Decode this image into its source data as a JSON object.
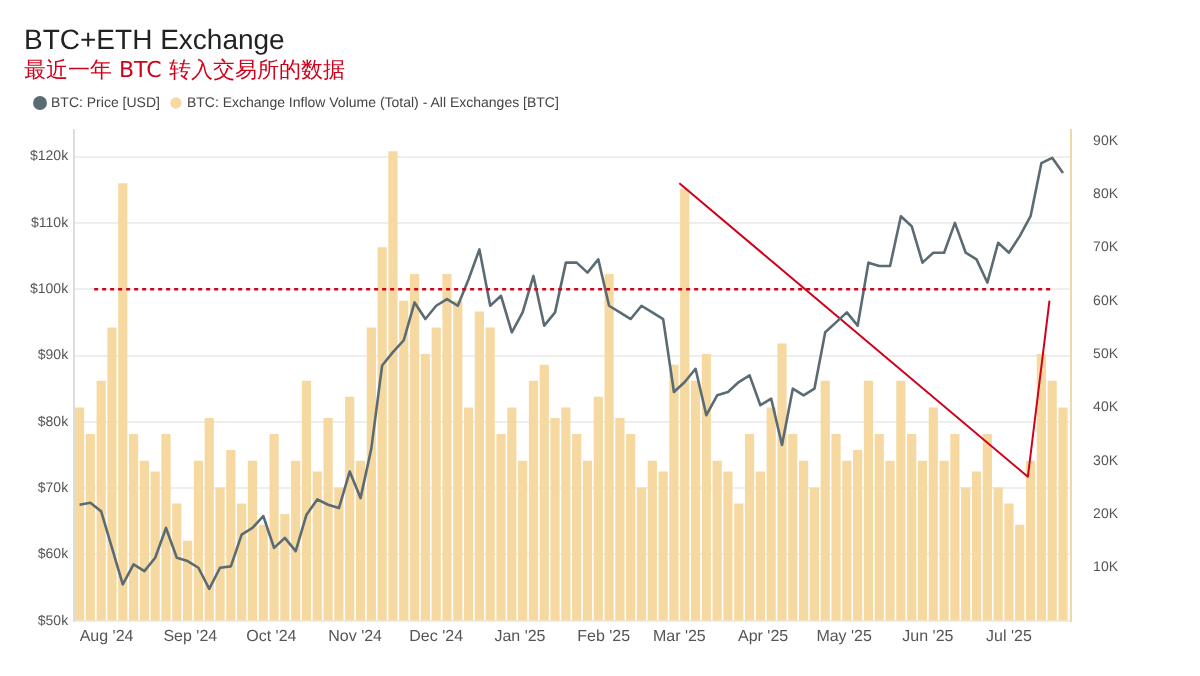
{
  "chart_data": {
    "type": "line",
    "title": "BTC+ETH Exchange",
    "subtitle": "最近一年 BTC 转入交易所的数据",
    "x": [
      "2024-07-22",
      "2024-07-26",
      "2024-07-30",
      "2024-08-03",
      "2024-08-07",
      "2024-08-11",
      "2024-08-15",
      "2024-08-19",
      "2024-08-23",
      "2024-08-27",
      "2024-08-31",
      "2024-09-04",
      "2024-09-08",
      "2024-09-12",
      "2024-09-16",
      "2024-09-20",
      "2024-09-24",
      "2024-09-28",
      "2024-10-02",
      "2024-10-06",
      "2024-10-10",
      "2024-10-14",
      "2024-10-18",
      "2024-10-22",
      "2024-10-26",
      "2024-10-30",
      "2024-11-03",
      "2024-11-07",
      "2024-11-11",
      "2024-11-15",
      "2024-11-19",
      "2024-11-23",
      "2024-11-27",
      "2024-12-01",
      "2024-12-05",
      "2024-12-09",
      "2024-12-13",
      "2024-12-17",
      "2024-12-21",
      "2024-12-25",
      "2024-12-29",
      "2025-01-02",
      "2025-01-06",
      "2025-01-10",
      "2025-01-14",
      "2025-01-18",
      "2025-01-22",
      "2025-01-26",
      "2025-01-30",
      "2025-02-03",
      "2025-02-07",
      "2025-02-11",
      "2025-02-15",
      "2025-02-19",
      "2025-02-23",
      "2025-02-27",
      "2025-03-03",
      "2025-03-07",
      "2025-03-11",
      "2025-03-15",
      "2025-03-19",
      "2025-03-23",
      "2025-03-27",
      "2025-03-31",
      "2025-04-04",
      "2025-04-08",
      "2025-04-12",
      "2025-04-16",
      "2025-04-20",
      "2025-04-24",
      "2025-04-28",
      "2025-05-02",
      "2025-05-06",
      "2025-05-10",
      "2025-05-14",
      "2025-05-18",
      "2025-05-22",
      "2025-05-26",
      "2025-05-30",
      "2025-06-03",
      "2025-06-07",
      "2025-06-11",
      "2025-06-15",
      "2025-06-19",
      "2025-06-23",
      "2025-06-27",
      "2025-07-01",
      "2025-07-05",
      "2025-07-09",
      "2025-07-13",
      "2025-07-17",
      "2025-07-21"
    ],
    "series": [
      {
        "name": "BTC: Exchange Inflow Volume (Total) - All Exchanges [BTC]",
        "type": "bar",
        "axis": "y2",
        "color": "#f5d9a0",
        "values": [
          40000,
          35000,
          45000,
          55000,
          82000,
          35000,
          30000,
          28000,
          35000,
          22000,
          15000,
          30000,
          38000,
          25000,
          32000,
          22000,
          30000,
          18000,
          35000,
          20000,
          30000,
          45000,
          28000,
          38000,
          25000,
          42000,
          30000,
          55000,
          70000,
          88000,
          60000,
          65000,
          50000,
          55000,
          65000,
          60000,
          40000,
          58000,
          55000,
          35000,
          40000,
          30000,
          45000,
          48000,
          38000,
          40000,
          35000,
          30000,
          42000,
          65000,
          38000,
          35000,
          25000,
          30000,
          28000,
          48000,
          81000,
          45000,
          50000,
          30000,
          28000,
          22000,
          35000,
          28000,
          40000,
          52000,
          35000,
          30000,
          25000,
          45000,
          35000,
          30000,
          32000,
          45000,
          35000,
          30000,
          45000,
          35000,
          30000,
          40000,
          30000,
          35000,
          25000,
          28000,
          35000,
          25000,
          22000,
          18000,
          30000,
          50000,
          45000,
          40000
        ]
      },
      {
        "name": "BTC: Price [USD]",
        "color": "#5b6b73",
        "values": [
          67500,
          67800,
          66500,
          61000,
          55500,
          58500,
          57500,
          59500,
          64000,
          59500,
          59000,
          58000,
          54800,
          58000,
          58200,
          63000,
          64000,
          65800,
          61000,
          62500,
          60500,
          66000,
          68300,
          67500,
          67000,
          72500,
          68500,
          76000,
          88500,
          90500,
          92300,
          98000,
          95500,
          97500,
          98500,
          97500,
          101500,
          106000,
          97500,
          99000,
          93500,
          96500,
          102000,
          94500,
          96500,
          104000,
          104000,
          102500,
          104500,
          97500,
          96500,
          95500,
          97500,
          96500,
          95500,
          84500,
          86000,
          88000,
          81000,
          84000,
          84500,
          86000,
          87000,
          82500,
          83500,
          76500,
          85000,
          84000,
          85000,
          93500,
          95000,
          96500,
          94500,
          104000,
          103500,
          103500,
          111000,
          109500,
          104000,
          105500,
          105500,
          110000,
          105500,
          104500,
          101000,
          107000,
          105500,
          108000,
          111000,
          119000,
          119800,
          117500
        ]
      },
      {
        "type": "line",
        "axis": "y2",
        "color": "#d0021b",
        "x": [
          "2025-03-01",
          "2025-07-08",
          "2025-07-16"
        ],
        "values": [
          82000,
          27000,
          60000
        ]
      }
    ],
    "xlim": [
      "2024-07-20",
      "2025-07-24"
    ],
    "xticks": [
      {
        "value": "2024-08-01",
        "label": "Aug '24"
      },
      {
        "value": "2024-09-01",
        "label": "Sep '24"
      },
      {
        "value": "2024-10-01",
        "label": "Oct '24"
      },
      {
        "value": "2024-11-01",
        "label": "Nov '24"
      },
      {
        "value": "2024-12-01",
        "label": "Dec '24"
      },
      {
        "value": "2025-01-01",
        "label": "Jan '25"
      },
      {
        "value": "2025-02-01",
        "label": "Feb '25"
      },
      {
        "value": "2025-03-01",
        "label": "Mar '25"
      },
      {
        "value": "2025-04-01",
        "label": "Apr '25"
      },
      {
        "value": "2025-05-01",
        "label": "May '25"
      },
      {
        "value": "2025-06-01",
        "label": "Jun '25"
      },
      {
        "value": "2025-07-01",
        "label": "Jul '25"
      }
    ],
    "ylim": [
      50000,
      124000
    ],
    "yticks": [
      {
        "value": 50000,
        "label": "$50k"
      },
      {
        "value": 60000,
        "label": "$60k"
      },
      {
        "value": 70000,
        "label": "$70k"
      },
      {
        "value": 80000,
        "label": "$80k"
      },
      {
        "value": 90000,
        "label": "$90k"
      },
      {
        "value": 100000,
        "label": "$100k"
      },
      {
        "value": 110000,
        "label": "$110k"
      },
      {
        "value": 120000,
        "label": "$120k"
      }
    ],
    "y2lim": [
      0,
      92000
    ],
    "y2ticks": [
      {
        "value": 10000,
        "label": "10K"
      },
      {
        "value": 20000,
        "label": "20K"
      },
      {
        "value": 30000,
        "label": "30K"
      },
      {
        "value": 40000,
        "label": "40K"
      },
      {
        "value": 50000,
        "label": "50K"
      },
      {
        "value": 60000,
        "label": "60K"
      },
      {
        "value": 70000,
        "label": "70K"
      },
      {
        "value": 80000,
        "label": "80K"
      },
      {
        "value": 90000,
        "label": "90K"
      }
    ],
    "ref_lines": [
      {
        "axis": "y",
        "value": 100000,
        "color": "#d0021b",
        "line_style": "dotted"
      }
    ],
    "grid": "y",
    "legend": "top left",
    "marker": "none"
  }
}
